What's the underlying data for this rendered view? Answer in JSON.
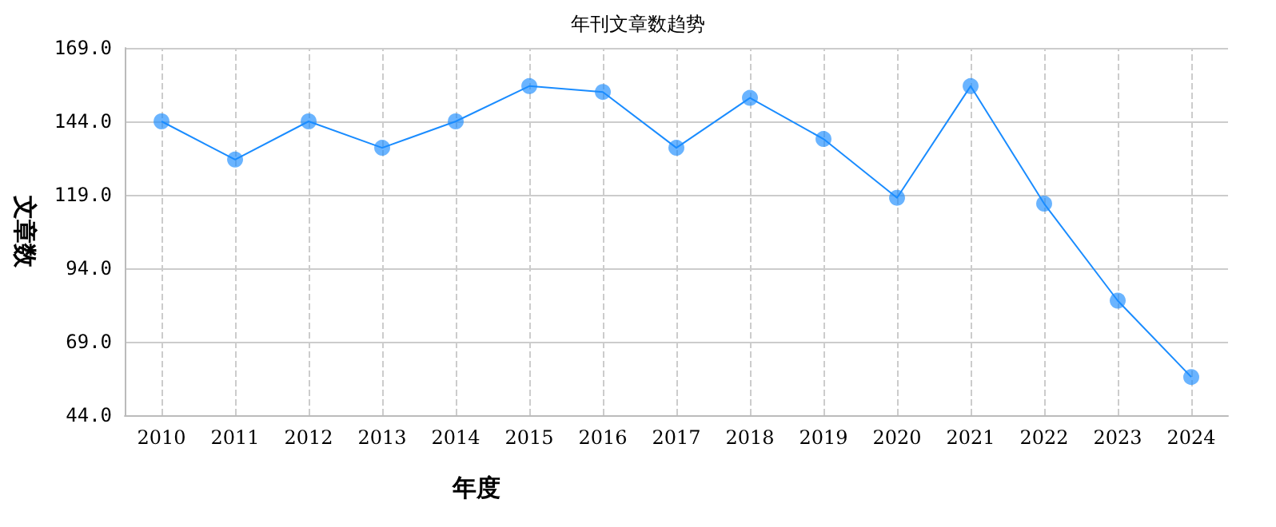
{
  "chart_data": {
    "type": "line",
    "title": "年刊文章数趋势",
    "xlabel": "年度",
    "ylabel": "文章数",
    "categories": [
      "2010",
      "2011",
      "2012",
      "2013",
      "2014",
      "2015",
      "2016",
      "2017",
      "2018",
      "2019",
      "2020",
      "2021",
      "2022",
      "2023",
      "2024"
    ],
    "series": [
      {
        "color": "#1a8cff",
        "values": [
          144,
          131,
          144,
          135,
          144,
          156,
          154,
          135,
          152,
          138,
          118,
          156,
          116,
          83,
          57
        ]
      }
    ],
    "ylim": [
      44,
      169
    ],
    "yticks": [
      {
        "value": 44,
        "label": "44.0"
      },
      {
        "value": 69,
        "label": "69.0"
      },
      {
        "value": 94,
        "label": "94.0"
      },
      {
        "value": 119,
        "label": "119.0"
      },
      {
        "value": 144,
        "label": "144.0"
      },
      {
        "value": 169,
        "label": "169.0"
      }
    ],
    "grid": true,
    "marker": "circle"
  }
}
